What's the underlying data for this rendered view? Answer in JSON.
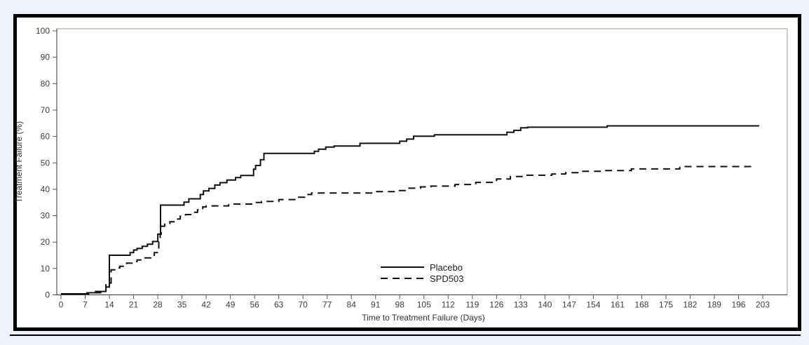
{
  "page": {
    "background_color": "#edf1f9",
    "frame_border_color": "#000000",
    "plot_box_color": "#9e9e9e",
    "line_color": "#111111",
    "tick_label_color": "#3c3c3c"
  },
  "chart_data": {
    "type": "line",
    "subtype": "step",
    "title": "",
    "xlabel": "Time to Treatment Failure (Days)",
    "ylabel": "Treatment Failure (%)",
    "xlim": [
      0,
      203
    ],
    "ylim": [
      0,
      100
    ],
    "x_ticks": [
      0,
      7,
      14,
      21,
      28,
      35,
      42,
      49,
      56,
      63,
      70,
      77,
      84,
      91,
      98,
      105,
      112,
      119,
      126,
      133,
      140,
      147,
      154,
      161,
      168,
      175,
      182,
      189,
      196,
      203
    ],
    "y_ticks": [
      0,
      10,
      20,
      30,
      40,
      50,
      60,
      70,
      80,
      90,
      100
    ],
    "grid": false,
    "legend_position": "inside-bottom-center",
    "series": [
      {
        "name": "Placebo",
        "line_style": "solid",
        "color": "#111111",
        "points": [
          [
            0,
            0.4
          ],
          [
            7.5,
            0.8
          ],
          [
            10,
            1.3
          ],
          [
            13,
            3
          ],
          [
            14,
            15
          ],
          [
            20,
            16
          ],
          [
            21,
            17
          ],
          [
            22,
            17.6
          ],
          [
            23.5,
            18.4
          ],
          [
            25,
            19.2
          ],
          [
            26.5,
            20.2
          ],
          [
            28,
            23
          ],
          [
            28.8,
            34
          ],
          [
            35.6,
            35.1
          ],
          [
            37,
            36.4
          ],
          [
            40.3,
            38
          ],
          [
            41.2,
            39.4
          ],
          [
            42.8,
            40.3
          ],
          [
            44.5,
            41.6
          ],
          [
            46,
            42.5
          ],
          [
            48,
            43.5
          ],
          [
            50.5,
            44.4
          ],
          [
            52,
            45.2
          ],
          [
            55.7,
            47.6
          ],
          [
            56.3,
            49
          ],
          [
            57.7,
            51.2
          ],
          [
            58.7,
            53.6
          ],
          [
            73.3,
            54.4
          ],
          [
            74.5,
            55.2
          ],
          [
            76.6,
            56
          ],
          [
            79,
            56.4
          ],
          [
            86.5,
            57.4
          ],
          [
            98,
            58.2
          ],
          [
            100,
            59
          ],
          [
            102,
            60.1
          ],
          [
            108,
            60.6
          ],
          [
            129,
            61.6
          ],
          [
            131,
            62.3
          ],
          [
            133,
            63.3
          ],
          [
            135,
            63.5
          ],
          [
            158,
            64
          ],
          [
            202,
            64
          ]
        ]
      },
      {
        "name": "SPD503",
        "line_style": "dashed",
        "color": "#111111",
        "points": [
          [
            0,
            0.4
          ],
          [
            8,
            0.8
          ],
          [
            11.5,
            1.6
          ],
          [
            13,
            4.5
          ],
          [
            14.5,
            9.5
          ],
          [
            16,
            10.2
          ],
          [
            17,
            10.8
          ],
          [
            19,
            12
          ],
          [
            21,
            12.6
          ],
          [
            22,
            13.2
          ],
          [
            24,
            14
          ],
          [
            26,
            15
          ],
          [
            27,
            16
          ],
          [
            28.3,
            20
          ],
          [
            28.7,
            23
          ],
          [
            29,
            26
          ],
          [
            30,
            27
          ],
          [
            31.5,
            27.7
          ],
          [
            33,
            28.7
          ],
          [
            34.5,
            29.8
          ],
          [
            36,
            30.4
          ],
          [
            38,
            31.3
          ],
          [
            39.5,
            32.2
          ],
          [
            41,
            33.3
          ],
          [
            42,
            33.7
          ],
          [
            48.5,
            34.4
          ],
          [
            56,
            35
          ],
          [
            58,
            35.4
          ],
          [
            63,
            36.1
          ],
          [
            68,
            37
          ],
          [
            70.5,
            38
          ],
          [
            72.5,
            38.6
          ],
          [
            91,
            39.1
          ],
          [
            97,
            39.5
          ],
          [
            100,
            40.4
          ],
          [
            104,
            40.9
          ],
          [
            107,
            41.2
          ],
          [
            114,
            41.8
          ],
          [
            120,
            42.6
          ],
          [
            126,
            43.9
          ],
          [
            130,
            44.8
          ],
          [
            134,
            45.3
          ],
          [
            142,
            45.8
          ],
          [
            146,
            46.3
          ],
          [
            150,
            46.8
          ],
          [
            156,
            47.1
          ],
          [
            165,
            47.7
          ],
          [
            179,
            48.6
          ],
          [
            201,
            48.6
          ]
        ]
      }
    ]
  },
  "legend": {
    "items": [
      {
        "label": "Placebo",
        "line_style": "solid"
      },
      {
        "label": "SPD503",
        "line_style": "dashed"
      }
    ]
  }
}
